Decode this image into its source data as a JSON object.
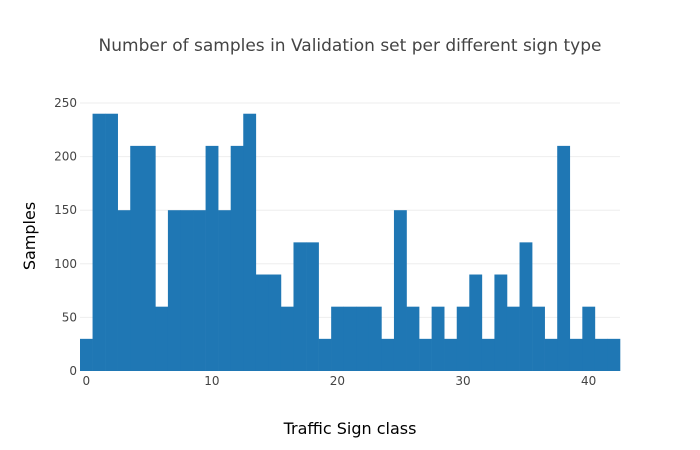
{
  "chart_data": {
    "type": "bar",
    "title": "Number of samples in Validation set per different sign type",
    "xlabel": "Traffic Sign class",
    "ylabel": "Samples",
    "categories": [
      0,
      1,
      2,
      3,
      4,
      5,
      6,
      7,
      8,
      9,
      10,
      11,
      12,
      13,
      14,
      15,
      16,
      17,
      18,
      19,
      20,
      21,
      22,
      23,
      24,
      25,
      26,
      27,
      28,
      29,
      30,
      31,
      32,
      33,
      34,
      35,
      36,
      37,
      38,
      39,
      40,
      41,
      42
    ],
    "values": [
      30,
      240,
      240,
      150,
      210,
      210,
      60,
      150,
      150,
      150,
      210,
      150,
      210,
      240,
      90,
      90,
      60,
      120,
      120,
      30,
      60,
      60,
      60,
      60,
      30,
      150,
      60,
      30,
      60,
      30,
      60,
      90,
      30,
      90,
      60,
      120,
      60,
      30,
      210,
      30,
      60,
      30,
      30
    ],
    "xlim": [
      -0.5,
      42.5
    ],
    "ylim": [
      0,
      250
    ],
    "xticks": [
      0,
      10,
      20,
      30,
      40
    ],
    "yticks": [
      0,
      50,
      100,
      150,
      200,
      250
    ],
    "grid": true,
    "bar_color": "#1f77b4"
  }
}
